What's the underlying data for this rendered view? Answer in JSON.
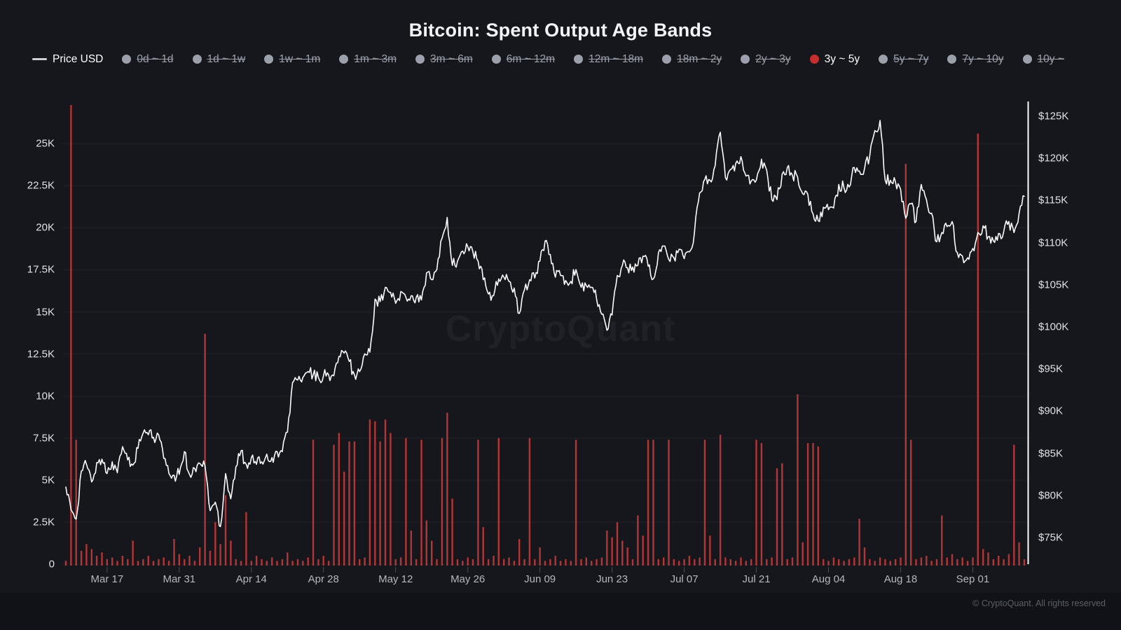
{
  "title": "Bitcoin: Spent Output Age Bands",
  "watermark": "CryptoQuant",
  "footer": "© CryptoQuant. All rights reserved",
  "colors": {
    "background": "#16171d",
    "bar_red": "#b23636",
    "accent_red": "#c62e2e",
    "inactive_gray": "#9ba0ab",
    "price_line": "#fdfdfd"
  },
  "legend": {
    "price_item": {
      "label": "Price USD",
      "active": true
    },
    "bands": [
      {
        "label": "0d ~ 1d",
        "active": false
      },
      {
        "label": "1d ~ 1w",
        "active": false
      },
      {
        "label": "1w ~ 1m",
        "active": false
      },
      {
        "label": "1m ~ 3m",
        "active": false
      },
      {
        "label": "3m ~ 6m",
        "active": false
      },
      {
        "label": "6m ~ 12m",
        "active": false
      },
      {
        "label": "12m ~ 18m",
        "active": false
      },
      {
        "label": "18m ~ 2y",
        "active": false
      },
      {
        "label": "2y ~ 3y",
        "active": false
      },
      {
        "label": "3y ~ 5y",
        "active": true
      },
      {
        "label": "5y ~ 7y",
        "active": false
      },
      {
        "label": "7y ~ 10y",
        "active": false
      },
      {
        "label": "10y ~",
        "active": false
      }
    ]
  },
  "chart_data": {
    "type": "bar+line",
    "title": "Bitcoin: Spent Output Age Bands",
    "series_names": [
      "Spent Output 3y ~ 5y (left axis, K)",
      "Price USD (right axis, $K)"
    ],
    "start_date": "Mar 09",
    "end_date": "Sep 11",
    "x_tick_labels": [
      "Mar 17",
      "Mar 31",
      "Apr 14",
      "Apr 28",
      "May 12",
      "May 26",
      "Jun 09",
      "Jun 23",
      "Jul 07",
      "Jul 21",
      "Aug 04",
      "Aug 18",
      "Sep 01"
    ],
    "x_first_tick_day": 8,
    "x_tick_step_days": 14,
    "left_axis": {
      "tick_labels": [
        "0",
        "2.5K",
        "5K",
        "7.5K",
        "10K",
        "12.5K",
        "15K",
        "17.5K",
        "20K",
        "22.5K",
        "25K"
      ],
      "tick_values": [
        0,
        2.5,
        5,
        7.5,
        10,
        12.5,
        15,
        17.5,
        20,
        22.5,
        25
      ],
      "max_value": 27.3
    },
    "right_axis": {
      "tick_labels": [
        "$75K",
        "$80K",
        "$85K",
        "$90K",
        "$95K",
        "$100K",
        "$105K",
        "$110K",
        "$115K",
        "$120K",
        "$125K"
      ],
      "tick_values": [
        75,
        80,
        85,
        90,
        95,
        100,
        105,
        110,
        115,
        120,
        125
      ],
      "min": 75,
      "max": 125
    },
    "price_usd_k": [
      81.0,
      78.3,
      77.2,
      82.9,
      83.7,
      81.6,
      83.9,
      84.3,
      82.6,
      84.0,
      82.7,
      85.8,
      84.2,
      83.6,
      85.6,
      87.4,
      87.2,
      86.9,
      87.2,
      84.4,
      82.6,
      82.4,
      82.5,
      85.2,
      82.5,
      83.2,
      83.8,
      83.5,
      78.2,
      79.2,
      76.3,
      82.6,
      79.6,
      83.4,
      85.3,
      83.7,
      84.5,
      83.7,
      84.0,
      84.9,
      84.5,
      85.2,
      85.2,
      87.5,
      93.4,
      93.7,
      94.0,
      94.7,
      94.3,
      94.0,
      94.2,
      94.3,
      94.2,
      96.5,
      96.9,
      95.9,
      94.3,
      94.7,
      96.8,
      97.0,
      103.3,
      103.0,
      104.7,
      104.1,
      102.8,
      104.2,
      103.5,
      103.7,
      103.5,
      103.2,
      106.4,
      105.6,
      106.8,
      110.5,
      113.0,
      107.3,
      107.8,
      109.0,
      109.5,
      108.9,
      107.8,
      105.6,
      103.9,
      103.7,
      105.7,
      105.9,
      105.4,
      104.6,
      101.6,
      104.4,
      105.6,
      105.8,
      107.8,
      110.2,
      108.6,
      105.9,
      106.1,
      105.5,
      105.4,
      106.8,
      104.7,
      104.9,
      104.7,
      103.3,
      101.5,
      99.6,
      101.4,
      106.1,
      107.3,
      107.0,
      107.1,
      107.3,
      108.4,
      107.2,
      105.7,
      108.8,
      109.6,
      108.0,
      108.2,
      109.2,
      108.1,
      108.9,
      111.3,
      115.9,
      117.5,
      117.4,
      119.1,
      123.1,
      117.7,
      118.7,
      119.4,
      120.2,
      117.9,
      117.3,
      117.4,
      119.9,
      118.6,
      115.1,
      115.1,
      118.1,
      118.9,
      118.0,
      117.8,
      115.8,
      115.7,
      113.4,
      112.6,
      114.2,
      113.9,
      114.1,
      116.9,
      116.5,
      116.6,
      118.9,
      118.5,
      118.8,
      120.3,
      123.3,
      124.5,
      117.4,
      117.4,
      117.2,
      116.3,
      112.9,
      114.6,
      112.5,
      116.9,
      115.1,
      113.5,
      110.1,
      111.2,
      111.9,
      112.5,
      108.8,
      108.4,
      108.2,
      109.3,
      111.2,
      112.0,
      110.7,
      110.2,
      111.1,
      111.3,
      112.5,
      111.2,
      113.5,
      115.5
    ],
    "spent_output_3y_5y_k": [
      0.2,
      27.3,
      7.4,
      0.8,
      1.2,
      0.9,
      0.5,
      0.7,
      0.3,
      0.4,
      0.2,
      0.5,
      0.3,
      1.4,
      0.2,
      0.3,
      0.5,
      0.2,
      0.3,
      0.4,
      0.2,
      1.5,
      0.6,
      0.3,
      0.5,
      0.2,
      1.0,
      13.7,
      0.8,
      2.5,
      1.2,
      4.1,
      1.4,
      0.3,
      0.2,
      3.1,
      0.2,
      0.5,
      0.3,
      0.2,
      0.4,
      0.2,
      0.3,
      0.7,
      0.2,
      0.3,
      0.2,
      0.4,
      7.4,
      0.3,
      0.5,
      0.2,
      7.1,
      7.8,
      5.5,
      7.3,
      7.3,
      0.3,
      0.4,
      8.6,
      8.5,
      7.3,
      8.6,
      7.8,
      0.3,
      0.4,
      7.5,
      2.0,
      0.3,
      7.4,
      2.6,
      1.4,
      0.3,
      7.5,
      9.0,
      3.9,
      0.3,
      0.2,
      0.4,
      0.3,
      7.4,
      2.2,
      0.3,
      0.5,
      7.5,
      0.3,
      0.4,
      0.2,
      1.5,
      0.3,
      7.5,
      0.3,
      1.0,
      0.2,
      0.3,
      0.5,
      0.2,
      0.3,
      0.2,
      7.4,
      0.3,
      0.4,
      0.2,
      0.3,
      0.4,
      2.0,
      1.6,
      2.5,
      1.4,
      1.0,
      0.3,
      2.9,
      1.7,
      7.4,
      7.4,
      0.3,
      0.4,
      7.4,
      0.3,
      0.2,
      0.3,
      0.5,
      0.3,
      0.4,
      7.4,
      1.7,
      0.3,
      7.7,
      0.4,
      0.3,
      0.2,
      0.4,
      0.2,
      0.3,
      7.4,
      7.2,
      0.3,
      0.4,
      5.7,
      6.0,
      0.3,
      0.4,
      10.1,
      1.3,
      7.2,
      7.2,
      7.0,
      0.3,
      0.2,
      0.4,
      0.3,
      0.2,
      0.3,
      0.4,
      2.7,
      1.0,
      0.3,
      0.2,
      0.4,
      0.3,
      0.2,
      0.3,
      0.4,
      23.8,
      7.4,
      0.3,
      0.4,
      0.5,
      0.2,
      0.3,
      2.9,
      0.4,
      0.6,
      0.3,
      0.4,
      0.2,
      0.4,
      25.6,
      0.9,
      0.7,
      0.3,
      0.5,
      0.3,
      0.6,
      7.1,
      1.3,
      0.3
    ]
  }
}
